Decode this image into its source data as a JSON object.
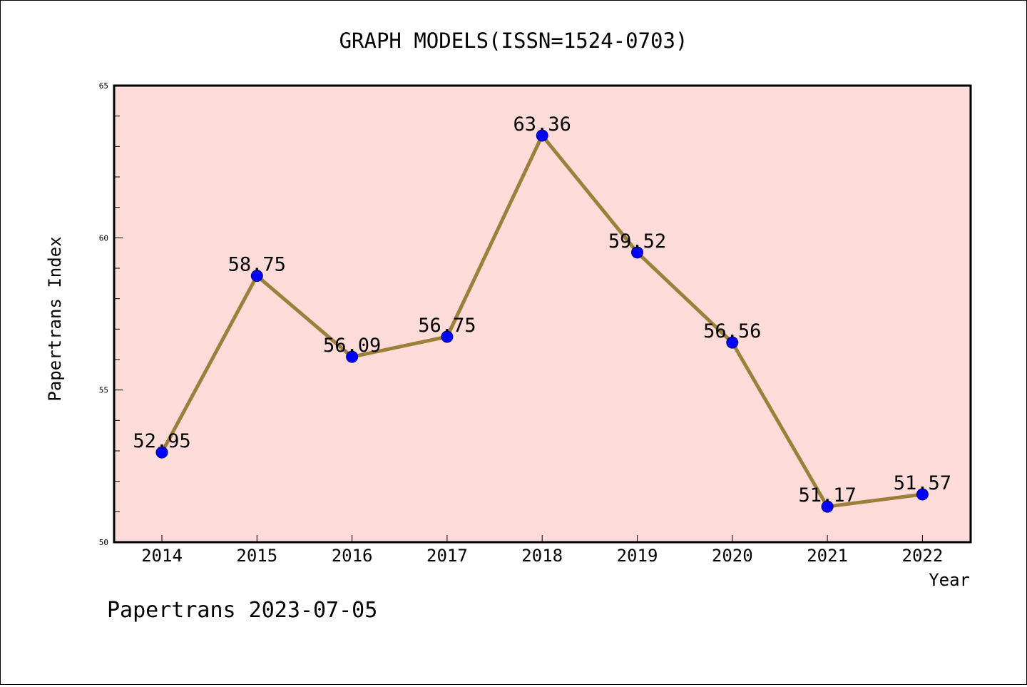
{
  "chart_data": {
    "type": "line",
    "title": "GRAPH MODELS(ISSN=1524-0703)",
    "xlabel": "Year",
    "ylabel": "Papertrans Index",
    "categories": [
      "2014",
      "2015",
      "2016",
      "2017",
      "2018",
      "2019",
      "2020",
      "2021",
      "2022"
    ],
    "series": [
      {
        "values": [
          52.95,
          58.75,
          56.09,
          56.75,
          63.36,
          59.52,
          56.56,
          51.17,
          51.57
        ],
        "labels": [
          "52.95",
          "58.75",
          "56.09",
          "56.75",
          "63.36",
          "59.52",
          "56.56",
          "51.17",
          "51.57"
        ]
      }
    ],
    "ylim": [
      50,
      65
    ],
    "yticks": [
      50,
      55,
      60,
      65
    ],
    "ytick_labels": [
      "50",
      "55",
      "60",
      "65"
    ],
    "grid": false,
    "footer": "Papertrans 2023-07-05",
    "colors": {
      "plot_background": "#fddbd8",
      "line": "#9b7f3a",
      "marker": "#0000ff",
      "axis": "#000000"
    }
  }
}
